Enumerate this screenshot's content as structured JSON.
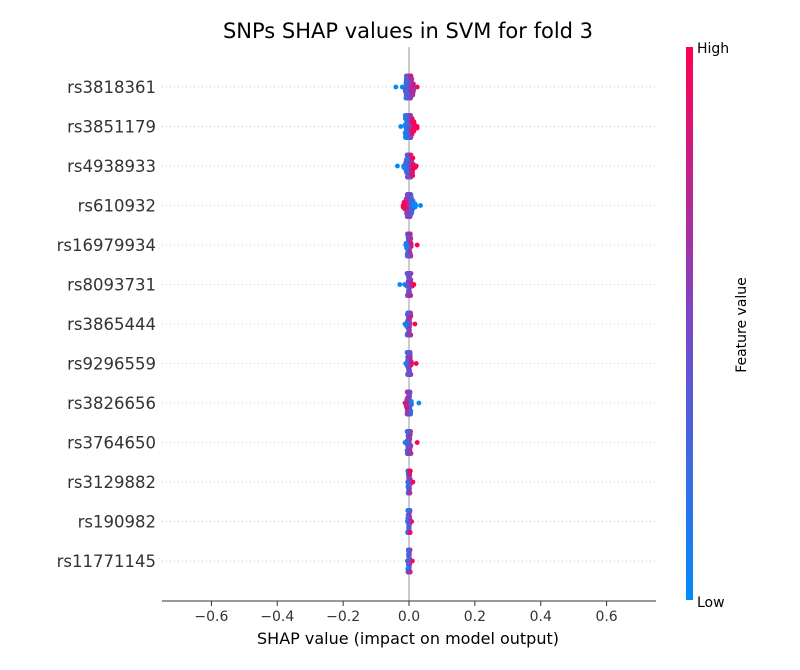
{
  "chart_data": {
    "type": "scatter",
    "subtype": "shap-beeswarm",
    "title": "SNPs SHAP values in SVM for fold 3",
    "xlabel": "SHAP value (impact on model output)",
    "ylabel": "",
    "xlim": [
      -0.75,
      0.75
    ],
    "xticks": [
      -0.6,
      -0.4,
      -0.2,
      0.0,
      0.2,
      0.4,
      0.6
    ],
    "xtick_labels": [
      "−0.6",
      "−0.4",
      "−0.2",
      "0.0",
      "0.2",
      "0.4",
      "0.6"
    ],
    "features": [
      {
        "name": "rs3818361",
        "spread": 0.014,
        "min": -0.04,
        "max": 0.025
      },
      {
        "name": "rs3851179",
        "spread": 0.015,
        "min": -0.025,
        "max": 0.025
      },
      {
        "name": "rs4938933",
        "spread": 0.012,
        "min": -0.035,
        "max": 0.022
      },
      {
        "name": "rs610932",
        "spread": 0.012,
        "min": -0.018,
        "max": 0.035
      },
      {
        "name": "rs16979934",
        "spread": 0.006,
        "min": -0.01,
        "max": 0.025
      },
      {
        "name": "rs8093731",
        "spread": 0.006,
        "min": -0.028,
        "max": 0.015
      },
      {
        "name": "rs3865444",
        "spread": 0.005,
        "min": -0.012,
        "max": 0.018
      },
      {
        "name": "rs9296559",
        "spread": 0.006,
        "min": -0.01,
        "max": 0.022
      },
      {
        "name": "rs3826656",
        "spread": 0.006,
        "min": -0.012,
        "max": 0.03
      },
      {
        "name": "rs3764650",
        "spread": 0.005,
        "min": -0.012,
        "max": 0.025
      },
      {
        "name": "rs3129882",
        "spread": 0.003,
        "min": -0.004,
        "max": 0.012
      },
      {
        "name": "rs190982",
        "spread": 0.003,
        "min": -0.005,
        "max": 0.008
      },
      {
        "name": "rs11771145",
        "spread": 0.003,
        "min": -0.005,
        "max": 0.01
      }
    ],
    "colorbar": {
      "label": "Feature value",
      "high_label": "High",
      "low_label": "Low",
      "low_color": "#008bfb",
      "high_color": "#ff0052"
    },
    "zero_line": true,
    "grid": false
  }
}
